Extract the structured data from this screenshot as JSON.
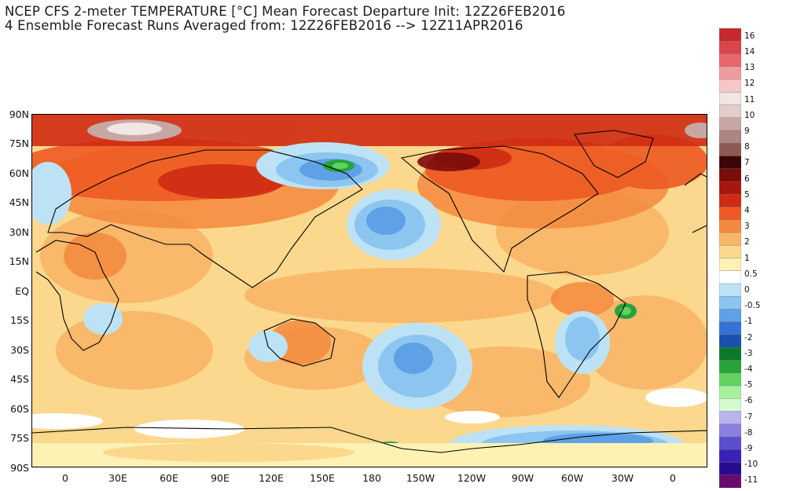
{
  "title": {
    "line1": "NCEP CFS 2-meter TEMPERATURE [°C] Mean Forecast Departure Init: 12Z26FEB2016",
    "line2": "4 Ensemble Forecast Runs Averaged from: 12Z26FEB2016 --> 12Z11APR2016"
  },
  "latitude_labels": [
    "90N",
    "75N",
    "60N",
    "45N",
    "30N",
    "15N",
    "EQ",
    "15S",
    "30S",
    "45S",
    "60S",
    "75S",
    "90S"
  ],
  "longitude_labels": [
    "0",
    "30E",
    "60E",
    "90E",
    "120E",
    "150E",
    "180",
    "150W",
    "120W",
    "90W",
    "60W",
    "30W",
    "0"
  ],
  "colorbar": {
    "labels": [
      "16",
      "14",
      "13",
      "12",
      "11",
      "10",
      "9",
      "8",
      "7",
      "6",
      "5",
      "4",
      "3",
      "2",
      "1",
      "0.5",
      "0",
      "-0.5",
      "-1",
      "-2",
      "-3",
      "-4",
      "-5",
      "-6",
      "-7",
      "-8",
      "-9",
      "-10",
      "-11"
    ],
    "colors": [
      "#c8282d",
      "#d9454b",
      "#e8676d",
      "#f19ba0",
      "#f7c6c8",
      "#f0e6e4",
      "#e3cdca",
      "#c7a7a3",
      "#ad8681",
      "#8c5a55",
      "#3d0505",
      "#7a0c0a",
      "#a8170f",
      "#cf2b12",
      "#ee5a23",
      "#f48a3d",
      "#f9b567",
      "#fbd88d",
      "#fdf1b4",
      "#ffffff",
      "#bde2f5",
      "#8cc6f0",
      "#5ea1e6",
      "#3472d6",
      "#1a4fb0",
      "#0a7a2a",
      "#28a33a",
      "#62d25f",
      "#a6f0a0",
      "#d8f8d0",
      "#b8b4ee",
      "#8b80e0",
      "#5c4ed0",
      "#3a20b8",
      "#2a0a8e",
      "#6a0a70"
    ]
  }
}
